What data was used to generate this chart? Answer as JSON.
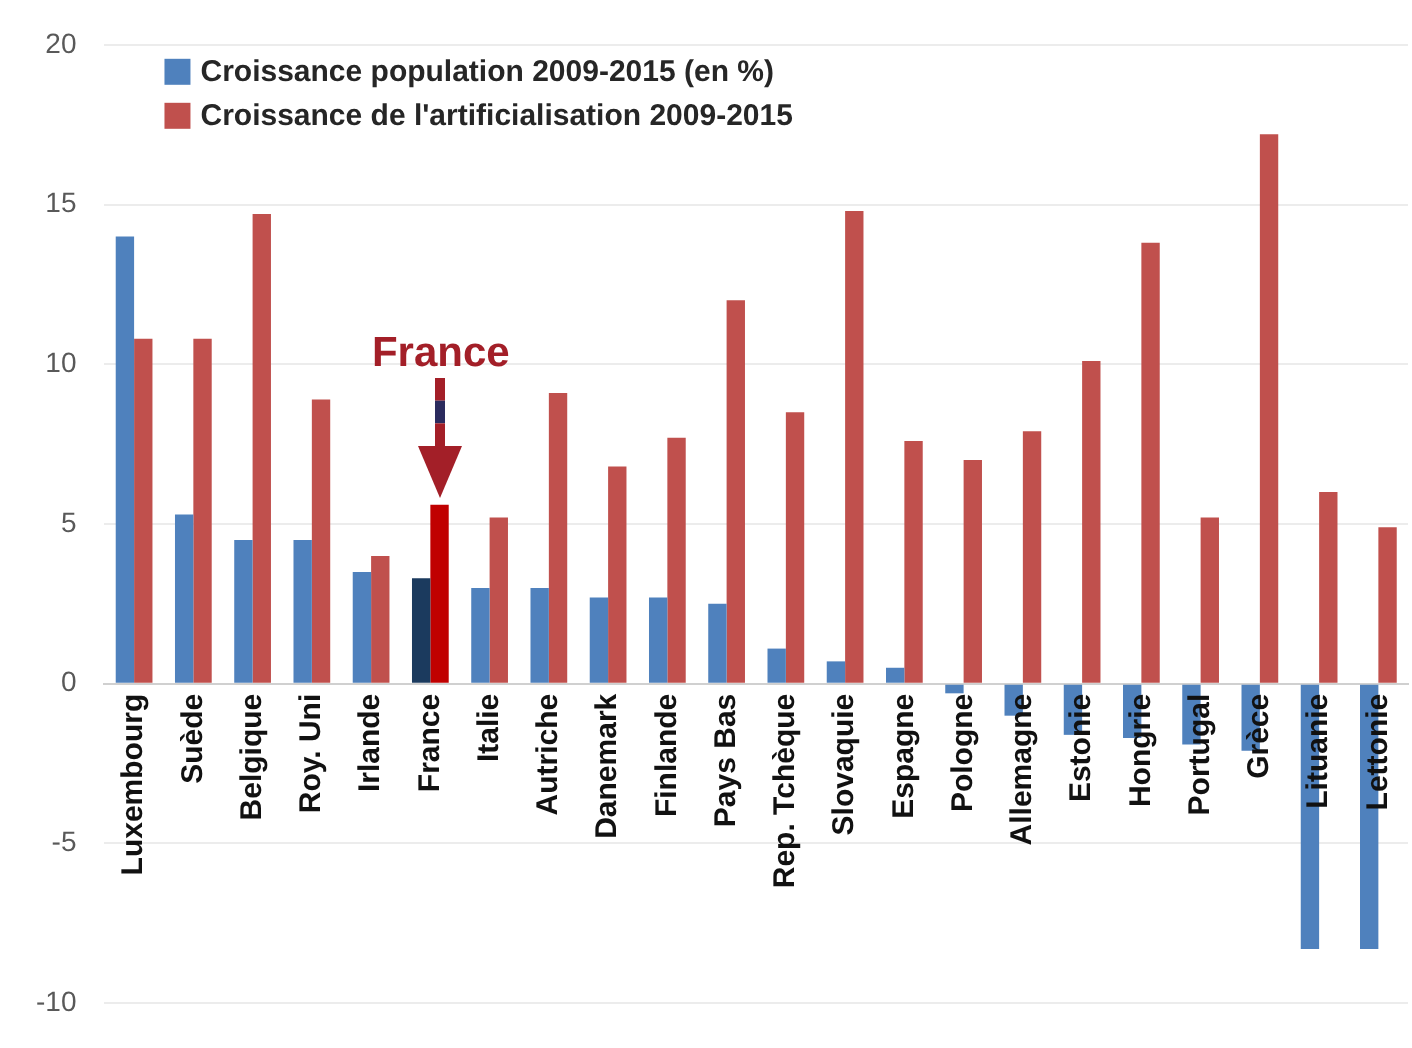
{
  "chart_data": {
    "type": "bar",
    "categories": [
      "Luxembourg",
      "Suède",
      "Belgique",
      "Roy. Uni",
      "Irlande",
      "France",
      "Italie",
      "Autriche",
      "Danemark",
      "Finlande",
      "Pays Bas",
      "Rep. Tchèque",
      "Slovaquie",
      "Espagne",
      "Pologne",
      "Allemagne",
      "Estonie",
      "Hongrie",
      "Portugal",
      "Grèce",
      "Lituanie",
      "Lettonie"
    ],
    "series": [
      {
        "name": "Croissance population 2009-2015 (en %)",
        "color": "#4f81bd",
        "colors": [
          "#4f81bd",
          "#4f81bd",
          "#4f81bd",
          "#4f81bd",
          "#4f81bd",
          "#1b3a5e",
          "#4f81bd",
          "#4f81bd",
          "#4f81bd",
          "#4f81bd",
          "#4f81bd",
          "#4f81bd",
          "#4f81bd",
          "#4f81bd",
          "#4f81bd",
          "#4f81bd",
          "#4f81bd",
          "#4f81bd",
          "#4f81bd",
          "#4f81bd",
          "#4f81bd",
          "#4f81bd"
        ],
        "values": [
          14.0,
          5.3,
          4.5,
          4.5,
          3.5,
          3.3,
          3.0,
          3.0,
          2.7,
          2.7,
          2.5,
          1.1,
          0.7,
          0.5,
          -0.3,
          -1.0,
          -1.6,
          -1.7,
          -1.9,
          -2.1,
          -8.3,
          -8.3
        ]
      },
      {
        "name": "Croissance de l'artificialisation 2009-2015",
        "color": "#c0504d",
        "colors": [
          "#c0504d",
          "#c0504d",
          "#c0504d",
          "#c0504d",
          "#c0504d",
          "#c00000",
          "#c0504d",
          "#c0504d",
          "#c0504d",
          "#c0504d",
          "#c0504d",
          "#c0504d",
          "#c0504d",
          "#c0504d",
          "#c0504d",
          "#c0504d",
          "#c0504d",
          "#c0504d",
          "#c0504d",
          "#c0504d",
          "#c0504d",
          "#c0504d"
        ],
        "values": [
          10.8,
          10.8,
          14.7,
          8.9,
          4.0,
          5.6,
          5.2,
          9.1,
          6.8,
          7.7,
          12.0,
          8.5,
          14.8,
          7.6,
          7.0,
          7.9,
          10.1,
          13.8,
          5.2,
          17.2,
          6.0,
          4.9
        ]
      }
    ],
    "ylim": [
      -10,
      20
    ],
    "yticks": [
      -10,
      -5,
      0,
      5,
      10,
      15,
      20
    ],
    "grid": "y",
    "legend": "top left",
    "annotations": [
      "France"
    ]
  }
}
